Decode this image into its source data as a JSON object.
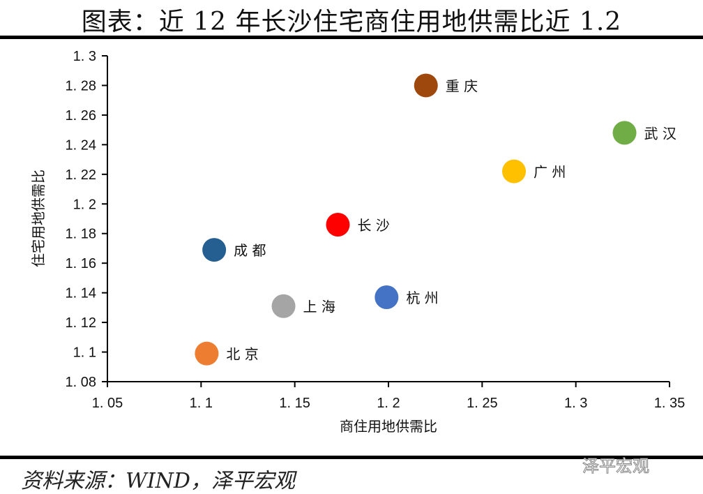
{
  "title": "图表：近 12 年长沙住宅商住用地供需比近 1.2",
  "source": "资料来源：WIND，泽平宏观",
  "watermark": "泽平宏观",
  "chart_data": {
    "type": "scatter",
    "title": "图表：近 12 年长沙住宅商住用地供需比近 1.2",
    "xlabel": "商住用地供需比",
    "ylabel": "住宅用地供需比",
    "xlim": [
      1.05,
      1.35
    ],
    "ylim": [
      1.08,
      1.3
    ],
    "xticks": [
      1.05,
      1.1,
      1.15,
      1.2,
      1.25,
      1.3,
      1.35
    ],
    "xtick_labels": [
      "1.05",
      "1.1",
      "1.15",
      "1.2",
      "1.25",
      "1.3",
      "1.35"
    ],
    "yticks": [
      1.08,
      1.1,
      1.12,
      1.14,
      1.16,
      1.18,
      1.2,
      1.22,
      1.24,
      1.26,
      1.28,
      1.3
    ],
    "ytick_labels": [
      "1.08",
      "1.1",
      "1.12",
      "1.14",
      "1.16",
      "1.18",
      "1.2",
      "1.22",
      "1.24",
      "1.26",
      "1.28",
      "1.3"
    ],
    "grid": false,
    "points": [
      {
        "label": "重庆",
        "x": 1.22,
        "y": 1.28,
        "color": "#9E480E"
      },
      {
        "label": "武汉",
        "x": 1.326,
        "y": 1.248,
        "color": "#70AD47"
      },
      {
        "label": "广州",
        "x": 1.267,
        "y": 1.222,
        "color": "#FFC000"
      },
      {
        "label": "长沙",
        "x": 1.173,
        "y": 1.186,
        "color": "#FF0000"
      },
      {
        "label": "成都",
        "x": 1.107,
        "y": 1.169,
        "color": "#255E91"
      },
      {
        "label": "杭州",
        "x": 1.199,
        "y": 1.137,
        "color": "#4472C4"
      },
      {
        "label": "上海",
        "x": 1.144,
        "y": 1.131,
        "color": "#A5A5A5"
      },
      {
        "label": "北京",
        "x": 1.103,
        "y": 1.099,
        "color": "#ED7D31"
      }
    ]
  }
}
